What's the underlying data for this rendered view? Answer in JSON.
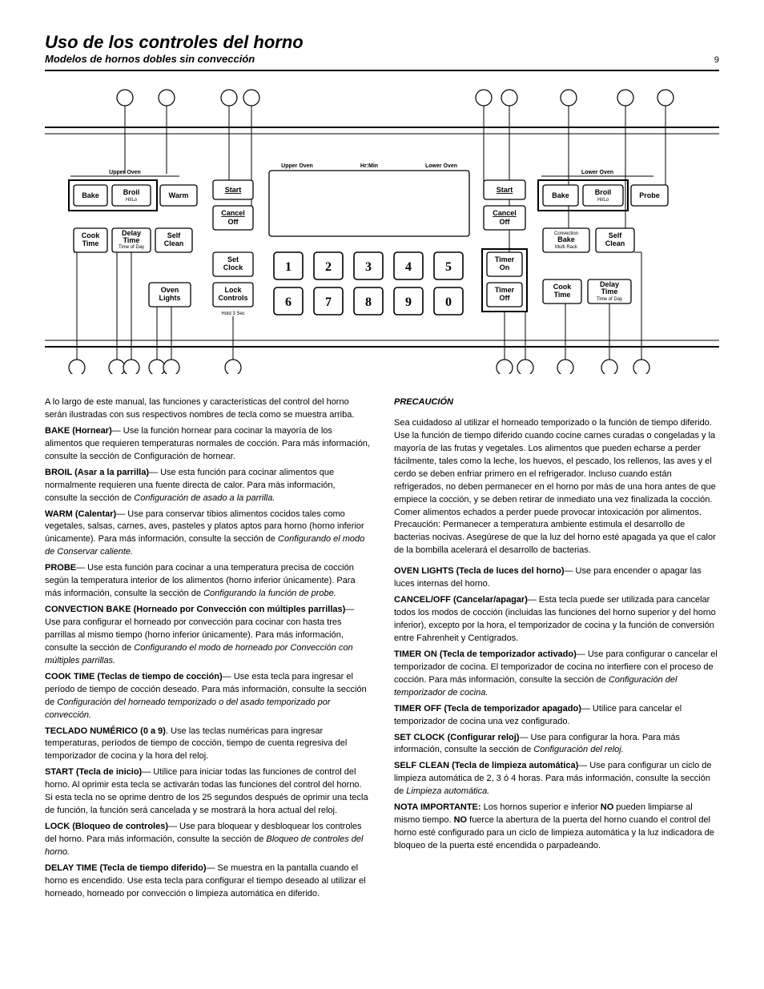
{
  "header": {
    "title_line1": "Uso de los controles del horno",
    "title_line2": "Modelos de hornos dobles sin convección",
    "page_num": "9"
  },
  "diagram": {
    "upper_text": "Upper Oven",
    "lower_text": "Lower Oven",
    "hrmin": "Hr:Min",
    "buttons": {
      "bake": "Bake",
      "broil": "Broil",
      "broil_sub": "Hi/Lo",
      "warm": "Warm",
      "probe": "Probe",
      "cook_time": "Cook\nTime",
      "delay_time": "Delay\nTime",
      "delay_sub": "Time of Day",
      "self_clean": "Self\nClean",
      "start": "Start",
      "cancel": "Cancel",
      "off": "Off",
      "set_clock": "Set\nClock",
      "oven_lights": "Oven\nLights",
      "lock_controls": "Lock\nControls",
      "hold3": "Hold 3 Sec",
      "timer_on": "Timer\nOn",
      "timer_off": "Timer\nOff",
      "conv_bake": "Bake",
      "conv_top": "Convection",
      "conv_sub": "Multi Rack"
    },
    "keypad": [
      "1",
      "2",
      "3",
      "4",
      "5",
      "6",
      "7",
      "8",
      "9",
      "0"
    ]
  },
  "body": {
    "intro": "A lo largo de este manual, las funciones y características del control del horno serán ilustradas con sus respectivos nombres de tecla como se muestra arriba.",
    "bake_t": "BAKE (Hornear)",
    "bake_b": "— Use la función hornear para cocinar la mayoría de los alimentos que requieren temperaturas normales de cocción. Para más información, consulte la sección de Configuración de hornear.",
    "broil_t": "BROIL (Asar a la parrilla)",
    "broil_b": "— Use esta función para cocinar alimentos que normalmente requieren una fuente directa de calor. Para más información, consulte la sección de ",
    "broil_i": "Configuración de asado a la parrilla.",
    "warm_t": "WARM (Calentar)",
    "warm_b": "— Use para conservar tibios alimentos cocidos tales como vegetales, salsas, carnes, aves, pasteles y platos aptos para horno (horno inferior únicamente). Para más información, consulte la sección de ",
    "warm_i": "Configurando el modo de Conservar caliente.",
    "probe_t": "PROBE",
    "probe_b": "— Use esta función para cocinar a una temperatura precisa de cocción según la temperatura interior de los alimentos (horno inferior únicamente). Para más información, consulte la sección de ",
    "probe_i": "Configurando la función de probe.",
    "conv_t": "CONVECTION BAKE (Horneado por Convección con múltiples parrillas)",
    "conv_b": "— Use para configurar el horneado por convección para cocinar con hasta tres parrillas al mismo tiempo (horno inferior únicamente). Para más información, consulte la sección de ",
    "conv_i": "Configurando el modo de horneado por Convección con múltiples parrillas.",
    "cook_t": "COOK TIME (Teclas de tiempo de cocción)",
    "cook_b": "— Use esta tecla para ingresar el período de tiempo de cocción deseado. Para más información, consulte la sección de ",
    "cook_i": "Configuración del horneado temporizado o del asado temporizado por convección.",
    "keypad_t": "TECLADO NUMÉRICO (0 a 9)",
    "keypad_b": ". Use las teclas numéricas para ingresar temperaturas, períodos de tiempo de cocción, tiempo de cuenta regresiva del temporizador de cocina y la hora del reloj.",
    "start_t": "START (Tecla de inicio)",
    "start_b": "— Utilice para iniciar todas las funciones de control del horno. Al oprimir esta tecla se activarán todas las funciones del control del horno. Si esta tecla no se oprime dentro de los 25 segundos después de oprimir una tecla de función, la función será cancelada y se mostrará la hora actual del reloj.",
    "lock_t": "LOCK (Bloqueo de controles)",
    "lock_b": "— Use para bloquear y desbloquear los controles del horno. Para más información, consulte la sección de ",
    "lock_i": "Bloqueo de controles del horno.",
    "delay_t": "DELAY TIME (Tecla de tiempo diferido)",
    "delay_b": "— Se muestra en la pantalla cuando el horno es encendido. Use esta tecla para configurar el tiempo deseado al utilizar el horneado, horneado por convección o limpieza automática en diferido.",
    "caution_t": "PRECAUCIÓN",
    "caution_b": "Sea cuidadoso al utilizar el horneado temporizado o la función de tiempo diferido. Use la función de tiempo diferido cuando cocine carnes curadas o congeladas y la mayoría de las frutas y vegetales. Los alimentos que pueden echarse a perder fácilmente, tales como la leche, los huevos, el pescado, los rellenos, las aves y el cerdo se deben enfriar primero en el refrigerador. Incluso cuando están refrigerados, no deben permanecer en el horno por más de una hora antes de que empiece la cocción, y se deben retirar de inmediato una vez finalizada la cocción. Comer alimentos echados a perder puede provocar intoxicación por alimentos. Precaución: Permanecer a temperatura ambiente estimula el desarrollo de bacterias nocivas. Asegúrese de que la luz del horno esté apagada ya que el calor de la bombilla acelerará el desarrollo de bacterias.",
    "lights_t": "OVEN LIGHTS (Tecla de luces del horno)",
    "lights_b": "— Use para encender o apagar las luces internas del horno.",
    "cancel_t": "CANCEL/OFF (Cancelar/apagar)",
    "cancel_b": "— Esta tecla puede ser utilizada para cancelar todos los modos de cocción (incluidas las funciones del horno superior y del horno inferior), excepto por la hora, el temporizador de cocina y la función de conversión entre Fahrenheit y Centígrados.",
    "timeron_t": "TIMER ON (Tecla de temporizador activado)",
    "timeron_b": "— Use para configurar o cancelar el temporizador de cocina. El temporizador de cocina no interfiere con el proceso de cocción. Para más información, consulte la sección de ",
    "timeron_i": "Configuración del temporizador de cocina.",
    "timeroff_t": "TIMER OFF (Tecla de temporizador apagado)",
    "timeroff_b": "— Utilice para cancelar el temporizador de cocina una vez configurado.",
    "clock_t": "SET CLOCK (Configurar reloj)",
    "clock_b": "— Use para configurar la hora. Para más información, consulte la sección de ",
    "clock_i": "Configuración del reloj.",
    "self_t": "SELF CLEAN (Tecla de limpieza automática)",
    "self_b": "— Use para configurar un ciclo de limpieza automática de 2, 3 ó 4 horas. Para más información, consulte la sección de ",
    "self_i": "Limpieza automática.",
    "impnote_t": "NOTA IMPORTANTE:",
    "impnote_b": " Los hornos superior e inferior ",
    "impnote_b2": "NO",
    "impnote_b3": " pueden limpiarse al mismo tiempo. ",
    "impnote_b4": "NO",
    "impnote_b5": " fuerce la abertura de la puerta del horno cuando el control del horno esté configurado para un ciclo de limpieza automática y la luz indicadora de bloqueo de la puerta esté encendida o parpadeando."
  }
}
